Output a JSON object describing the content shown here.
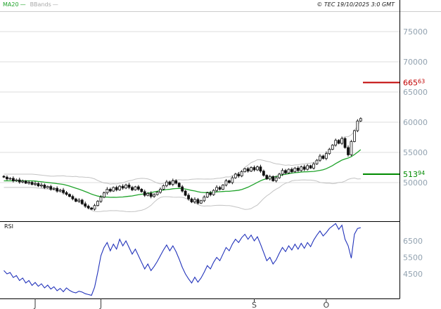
{
  "meta": {
    "copyright": "© TEC 19/10/2025 3:0 GMT"
  },
  "legend": {
    "ma20_label": "MA20",
    "bbands_label": "BBands",
    "swatch_char": "—"
  },
  "rsi_panel": {
    "label": "RSI"
  },
  "colors": {
    "ma20": "#1fa32a",
    "bbands": "#c3c3c3",
    "bbands_text": "#a8a8a8",
    "candle": "#111111",
    "rsi_line": "#2233bb",
    "level_red": "#c00000",
    "level_green": "#008a00",
    "axis_text": "#92a2b0",
    "month_text": "#444444",
    "grid": "#dcdcdc",
    "frame": "#000000",
    "top_rule": "#cccccc"
  },
  "chart_data": {
    "type": "candlestick",
    "title": "",
    "x_ticks": [
      {
        "label": "J",
        "index": 10
      },
      {
        "label": "J",
        "index": 31
      },
      {
        "label": "S",
        "index": 80
      },
      {
        "label": "O",
        "index": 103
      }
    ],
    "price": {
      "ylim": [
        45000,
        76000
      ],
      "y_ticks": [
        75000,
        70000,
        65000,
        60000,
        55000,
        50000
      ],
      "levels": [
        {
          "value": 66563,
          "label": "66563",
          "color": "#c00000"
        },
        {
          "value": 51394,
          "label": "51394",
          "color": "#008a00"
        }
      ],
      "overlays": [
        "MA20",
        "BBands"
      ],
      "closes": [
        50900,
        50600,
        50700,
        50300,
        50450,
        50100,
        50250,
        49900,
        50050,
        49700,
        49850,
        49450,
        49600,
        49150,
        49350,
        48900,
        49050,
        48600,
        48750,
        48350,
        48050,
        47700,
        47300,
        46900,
        47100,
        46500,
        46100,
        45800,
        45600,
        46200,
        46900,
        47600,
        48300,
        48900,
        48600,
        49200,
        48800,
        49400,
        49100,
        49600,
        49200,
        48800,
        49300,
        48900,
        48500,
        47900,
        48200,
        47700,
        48000,
        48400,
        48900,
        49500,
        50100,
        49700,
        50300,
        49900,
        49300,
        48600,
        47900,
        47300,
        46800,
        47200,
        46600,
        47000,
        47600,
        48300,
        48000,
        48700,
        49200,
        48900,
        49600,
        50300,
        50000,
        50800,
        51400,
        51100,
        51800,
        52300,
        51900,
        52500,
        52100,
        52600,
        51900,
        51200,
        50600,
        51000,
        50300,
        50800,
        51400,
        52000,
        51600,
        52200,
        51800,
        52400,
        52000,
        52600,
        52200,
        52800,
        52400,
        53100,
        53700,
        54400,
        54000,
        54800,
        55500,
        56200,
        57000,
        56500,
        57300,
        55800,
        54600,
        56800,
        58600,
        60200,
        60600
      ]
    },
    "rsi": {
      "ylim": [
        2700,
        7800
      ],
      "y_ticks": [
        6500,
        5500,
        4500
      ],
      "values": [
        4700,
        4500,
        4580,
        4280,
        4400,
        4100,
        4250,
        3950,
        4100,
        3800,
        3980,
        3750,
        3900,
        3650,
        3820,
        3580,
        3720,
        3480,
        3620,
        3420,
        3650,
        3500,
        3400,
        3350,
        3450,
        3400,
        3300,
        3250,
        3200,
        3700,
        4600,
        5600,
        6100,
        6400,
        5900,
        6300,
        6000,
        6600,
        6200,
        6500,
        6100,
        5700,
        6000,
        5600,
        5200,
        4800,
        5100,
        4700,
        4950,
        5250,
        5600,
        5950,
        6250,
        5900,
        6200,
        5850,
        5400,
        4900,
        4500,
        4200,
        3950,
        4300,
        4000,
        4250,
        4600,
        5000,
        4800,
        5200,
        5500,
        5300,
        5700,
        6100,
        5900,
        6300,
        6600,
        6400,
        6700,
        6900,
        6600,
        6850,
        6500,
        6750,
        6300,
        5800,
        5300,
        5500,
        5100,
        5350,
        5750,
        6100,
        5850,
        6200,
        5950,
        6300,
        6000,
        6350,
        6050,
        6400,
        6150,
        6550,
        6850,
        7100,
        6800,
        7000,
        7250,
        7400,
        7550,
        7200,
        7450,
        6600,
        6200,
        5450,
        6900,
        7250,
        7300
      ]
    }
  }
}
